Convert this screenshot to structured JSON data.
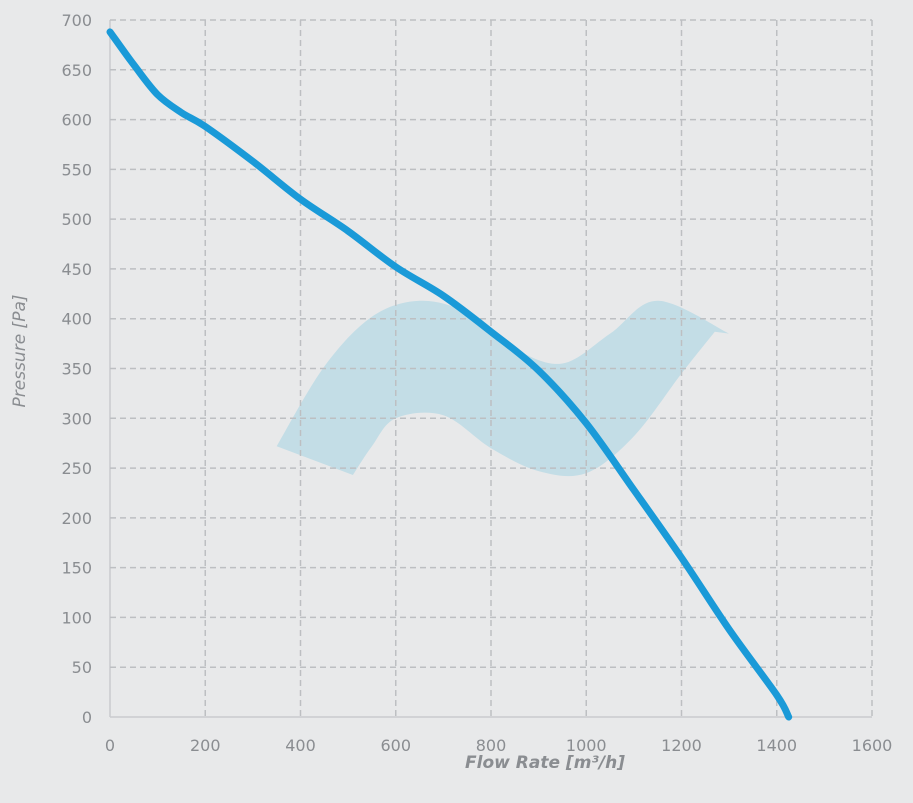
{
  "chart_data": {
    "type": "line",
    "xlabel": "Flow Rate [m³/h]",
    "ylabel": "Pressure [Pa]",
    "xlim": [
      0,
      1600
    ],
    "ylim": [
      0,
      700
    ],
    "x_ticks": [
      "0",
      "200",
      "400",
      "600",
      "800",
      "1000",
      "1200",
      "1400",
      "1600"
    ],
    "y_ticks": [
      "0",
      "50",
      "100",
      "150",
      "200",
      "250",
      "300",
      "350",
      "400",
      "450",
      "500",
      "550",
      "600",
      "650",
      "700"
    ],
    "grid": true,
    "colors": {
      "curve": "#1a9ad8",
      "band": "#c3dde6",
      "background": "#e8e9ea",
      "grid": "#bdbfc2",
      "text": "#8a8d91"
    },
    "series": [
      {
        "x": [
          0,
          50,
          100,
          150,
          200,
          300,
          400,
          500,
          600,
          700,
          800,
          900,
          1000,
          1100,
          1200,
          1300,
          1400,
          1425
        ],
        "y": [
          688,
          655,
          625,
          607,
          593,
          558,
          520,
          488,
          452,
          423,
          387,
          348,
          295,
          228,
          160,
          88,
          22,
          0
        ]
      }
    ],
    "operating_band": {
      "upper": {
        "x": [
          350,
          450,
          550,
          650,
          750,
          850,
          950,
          1050,
          1150,
          1300
        ],
        "y": [
          272,
          352,
          402,
          418,
          406,
          370,
          355,
          385,
          418,
          385
        ]
      },
      "lower": {
        "x": [
          510,
          550,
          600,
          700,
          800,
          900,
          1000,
          1100,
          1200,
          1270
        ],
        "y": [
          243,
          272,
          300,
          303,
          270,
          247,
          245,
          282,
          345,
          387
        ]
      }
    }
  }
}
